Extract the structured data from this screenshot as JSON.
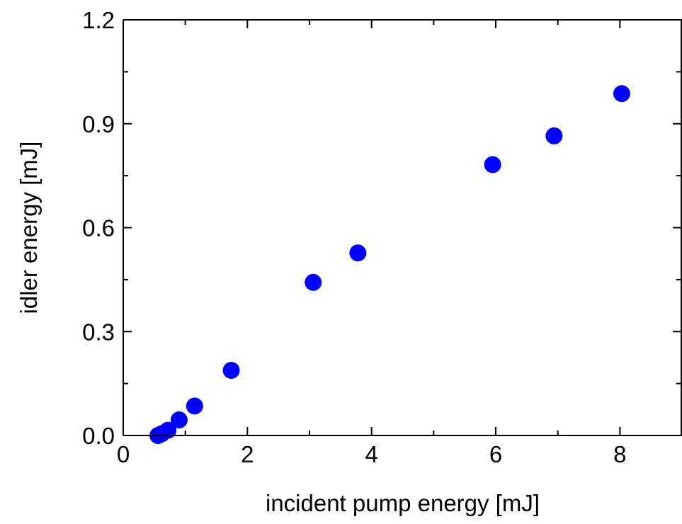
{
  "chart_data": {
    "type": "scatter",
    "title": "",
    "xlabel": "incident pump energy [mJ]",
    "ylabel": "idler energy [mJ]",
    "xlim": [
      0,
      9
    ],
    "ylim": [
      0,
      1.2
    ],
    "x_ticks": [
      0,
      2,
      4,
      6,
      8
    ],
    "x_tick_labels": [
      "0",
      "2",
      "4",
      "6",
      "8"
    ],
    "y_ticks": [
      0.0,
      0.3,
      0.6,
      0.9,
      1.2
    ],
    "y_tick_labels": [
      "0.0",
      "0.3",
      "0.6",
      "0.9",
      "1.2"
    ],
    "grid": false,
    "legend": "none",
    "marker_color": "#0000ff",
    "series": [
      {
        "x": [
          0.56,
          0.62,
          0.72,
          0.9,
          1.15,
          1.74,
          3.06,
          3.78,
          5.95,
          6.94,
          8.03
        ],
        "y": [
          0.0,
          0.005,
          0.015,
          0.045,
          0.085,
          0.188,
          0.442,
          0.527,
          0.782,
          0.865,
          0.987
        ]
      }
    ]
  }
}
